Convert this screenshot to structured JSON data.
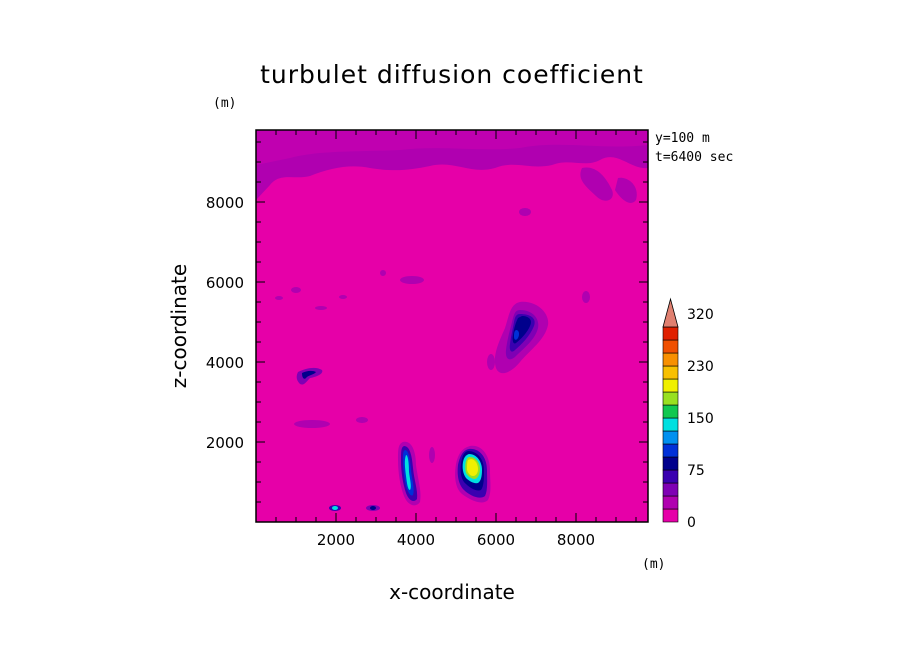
{
  "chart_data": {
    "type": "heatmap",
    "title": "turbulet diffusion coefficient",
    "xlabel": "x-coordinate",
    "ylabel": "z-coordinate",
    "x_unit": "(m)",
    "y_unit": "(m)",
    "xlim": [
      0,
      9800
    ],
    "ylim": [
      0,
      9800
    ],
    "x_ticks": [
      2000,
      4000,
      6000,
      8000
    ],
    "y_ticks": [
      2000,
      4000,
      6000,
      8000
    ],
    "annotations": [
      "y=100 m",
      "t=6400 sec"
    ],
    "background_level": "0",
    "colorbar": {
      "labels": [
        "0",
        "75",
        "150",
        "230",
        "320"
      ],
      "label_levels": [
        0,
        75,
        150,
        230,
        320
      ],
      "levels": [
        0,
        20,
        40,
        60,
        75,
        95,
        115,
        135,
        150,
        170,
        190,
        210,
        230,
        255,
        280,
        300,
        320
      ],
      "colors": [
        "#e600a8",
        "#b000b0",
        "#7f00b4",
        "#3a00b0",
        "#00008c",
        "#0030d8",
        "#0090f0",
        "#00e0e0",
        "#10c850",
        "#98e020",
        "#f0f000",
        "#f8c000",
        "#f89000",
        "#f05000",
        "#e02000",
        "#e08070"
      ]
    },
    "features": [
      {
        "x": [
          3000,
          4200
        ],
        "y": [
          400,
          2000
        ],
        "peak": 160
      },
      {
        "x": [
          5200,
          5950
        ],
        "y": [
          600,
          2000
        ],
        "peak": 220
      },
      {
        "x": [
          6300,
          7100
        ],
        "y": [
          4300,
          5400
        ],
        "peak": 110
      },
      {
        "x": [
          1000,
          1800
        ],
        "y": [
          3600,
          4000
        ],
        "peak": 60
      },
      {
        "x": [
          1800,
          3300
        ],
        "y": [
          300,
          550
        ],
        "peak": 80
      },
      {
        "x": [
          0,
          9800
        ],
        "y": [
          8200,
          9800
        ],
        "peak": 25
      }
    ]
  },
  "colors": {
    "background": "#e600a8",
    "purple_low": "#b000b0",
    "navy": "#00008c",
    "cyan": "#00e0e0",
    "yellow": "#f0f000"
  }
}
